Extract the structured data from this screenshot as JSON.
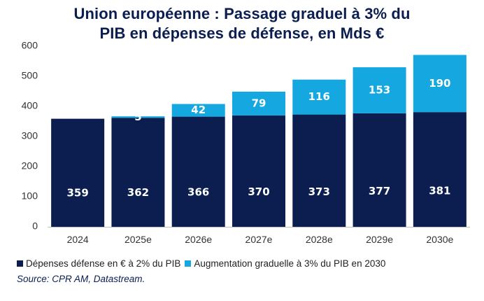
{
  "title_line1": "Union européenne : Passage graduel à 3% du",
  "title_line2": "PIB en dépenses de défense, en Mds €",
  "source": "Source: CPR AM, Datastream.",
  "colors": {
    "base": "#0b1e4f",
    "increase": "#14a7e0"
  },
  "chart_data": {
    "type": "bar",
    "stacked": true,
    "title": "Union européenne : Passage graduel à 3% du PIB en dépenses de défense, en Mds €",
    "categories": [
      "2024",
      "2025e",
      "2026e",
      "2027e",
      "2028e",
      "2029e",
      "2030e"
    ],
    "series": [
      {
        "name": "Dépenses défense en € à 2% du PIB",
        "values": [
          359,
          362,
          366,
          370,
          373,
          377,
          381
        ],
        "labels": [
          "359",
          "362",
          "366",
          "370",
          "373",
          "377",
          "381"
        ]
      },
      {
        "name": "Augmentation graduelle à 3% du PIB en 2030",
        "values": [
          0,
          5,
          42,
          79,
          116,
          153,
          190
        ],
        "labels": [
          "",
          "5",
          "42",
          "79",
          "116",
          "153",
          "190"
        ]
      }
    ],
    "yticks": [
      "0",
      "100",
      "200",
      "300",
      "400",
      "500",
      "600"
    ],
    "ylim": [
      0,
      600
    ],
    "grid": false,
    "legend": "bottom"
  }
}
